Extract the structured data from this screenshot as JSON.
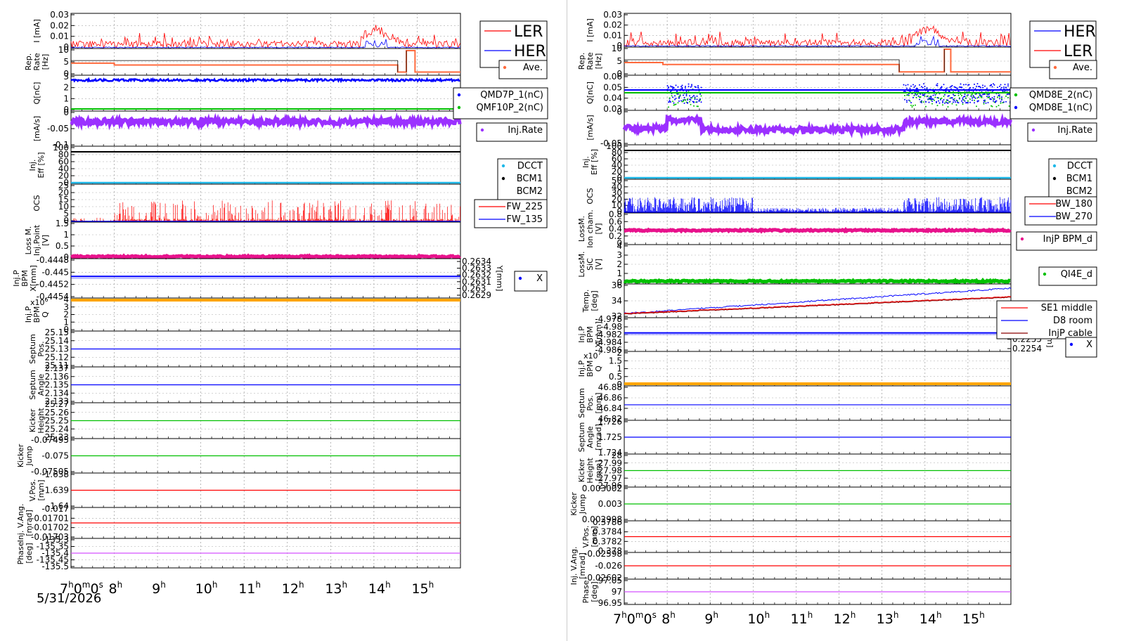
{
  "colors": {
    "red": "#ff0000",
    "blue": "#0000ff",
    "orange": "#ff6a3d",
    "green": "#00c000",
    "purple": "#9b30ff",
    "cyan": "#1fb8e8",
    "magenta": "#e8128c",
    "gold": "#ffa500",
    "lime": "#1ad01a",
    "darkred": "#8b0000",
    "violet": "#d452ff"
  },
  "left": {
    "date_label": "5/31/2026",
    "panels": [
      {
        "id": "current",
        "ylabel": [
          "I [mA]"
        ],
        "ticks": [
          "0.03",
          "0.02",
          "0.01",
          "0"
        ],
        "legend": [
          "LER",
          "HER"
        ],
        "legend_style": "big"
      },
      {
        "id": "reprate",
        "ylabel": [
          "Rep.",
          "Rate",
          "[Hz]"
        ],
        "ticks": [
          "10",
          "5",
          "0"
        ],
        "legend": [
          "Ave."
        ]
      },
      {
        "id": "charge",
        "ylabel": [
          "Q[nC]"
        ],
        "ticks": [
          "3",
          "2",
          "1",
          "0"
        ],
        "legend": [
          "QMD7P_1(nC)",
          "QMF10P_2(nC)"
        ]
      },
      {
        "id": "injrate",
        "ylabel": [
          "[mA/s]"
        ],
        "ticks": [
          "0",
          "-0.05",
          "-0.1"
        ],
        "legend": [
          "Inj.Rate"
        ]
      },
      {
        "id": "eff",
        "ylabel": [
          "Inj.",
          "Eff [%]"
        ],
        "ticks": [
          "100",
          "80",
          "60",
          "40",
          "20",
          "0"
        ],
        "legend": [
          "DCCT",
          "BCM1",
          "BCM2"
        ]
      },
      {
        "id": "ocs",
        "ylabel": [
          "OCS"
        ],
        "ticks": [
          "25",
          "20",
          "15",
          "10",
          "5",
          "0"
        ],
        "legend": [
          "FW_225",
          "FW_135"
        ]
      },
      {
        "id": "loss",
        "ylabel": [
          "Loss M.",
          "Inj.Point",
          "[V]"
        ],
        "ticks": [
          "1.5",
          "1",
          "0.5",
          "0"
        ],
        "legend": []
      },
      {
        "id": "bpmx",
        "ylabel": [
          "Inj.P",
          "BPM",
          "X[mm]"
        ],
        "ticks": [
          "-0.4448",
          "-0.445",
          "-0.4452",
          "-0.4454"
        ],
        "right_ticks": [
          "0.2634",
          "0.2633",
          "0.2632",
          "0.2631",
          "0.263",
          "0.2629"
        ],
        "right_label": "Y[mm]",
        "legend": [
          "X"
        ]
      },
      {
        "id": "bpmq",
        "ylabel": [
          "Inj.P",
          "BPM",
          "Q"
        ],
        "ticks": [
          "4",
          "3",
          "2",
          "1",
          "0"
        ],
        "exp": "x10^6",
        "legend": []
      },
      {
        "id": "septpos",
        "ylabel": [
          "Septum",
          "Pos."
        ],
        "ticks": [
          "25.15",
          "25.14",
          "25.13",
          "25.12",
          "25.11"
        ],
        "legend": []
      },
      {
        "id": "septang",
        "ylabel": [
          "Septum",
          "Angle"
        ],
        "ticks": [
          "2.137",
          "2.136",
          "2.135",
          "2.134",
          "2.133"
        ],
        "legend": []
      },
      {
        "id": "kickh",
        "ylabel": [
          "Kicker",
          "Height"
        ],
        "ticks": [
          "25.27",
          "25.26",
          "25.25",
          "25.24",
          "25.23"
        ],
        "legend": []
      },
      {
        "id": "kickj",
        "ylabel": [
          "Kicker",
          "Jump"
        ],
        "ticks": [
          "-0.07495",
          "-0.075",
          "-0.07505"
        ],
        "legend": []
      },
      {
        "id": "vpos",
        "ylabel": [
          "V.Pos.",
          "[mm]"
        ],
        "ticks": [
          "-1.638",
          "-1.639",
          "-1.64"
        ],
        "legend": []
      },
      {
        "id": "vang",
        "ylabel": [
          "Inj. V.Ang.",
          "[mrad]"
        ],
        "ticks": [
          "-0.017",
          "-0.01701",
          "-0.01702",
          "-0.01703"
        ],
        "legend": []
      },
      {
        "id": "phase",
        "ylabel": [
          "Phase",
          "[deg]"
        ],
        "ticks": [
          "-135.3",
          "-135.35",
          "-135.4",
          "-135.45",
          "-135.5"
        ],
        "legend": []
      }
    ]
  },
  "right": {
    "panels": [
      {
        "id": "current",
        "ylabel": [
          "I [mA]"
        ],
        "ticks": [
          "0.03",
          "0.02",
          "0.01",
          "0"
        ],
        "legend": [
          "HER",
          "LER"
        ],
        "legend_style": "big"
      },
      {
        "id": "reprate",
        "ylabel": [
          "Rep.",
          "Rate",
          "[Hz]"
        ],
        "ticks": [
          "10",
          "5",
          "0"
        ],
        "legend": [
          "Ave."
        ]
      },
      {
        "id": "charge",
        "ylabel": [
          "Q[nC]"
        ],
        "ticks": [
          "0.06",
          "0.05",
          "0.04",
          "0.03"
        ],
        "legend": [
          "QMD8E_2(nC)",
          "QMD8E_1(nC)"
        ]
      },
      {
        "id": "injrate",
        "ylabel": [
          "[mA/s]"
        ],
        "ticks": [
          "0",
          "-0.05"
        ],
        "legend": [
          "Inj.Rate"
        ]
      },
      {
        "id": "eff",
        "ylabel": [
          "Inj.",
          "Eff [%]"
        ],
        "ticks": [
          "100",
          "80",
          "60",
          "40",
          "20",
          "0"
        ],
        "legend": [
          "DCCT",
          "BCM1",
          "BCM2"
        ]
      },
      {
        "id": "ocs",
        "ylabel": [
          "OCS"
        ],
        "ticks": [
          "50",
          "40",
          "30",
          "20",
          "10",
          "0"
        ],
        "legend": [
          "BW_180",
          "BW_270"
        ]
      },
      {
        "id": "loss",
        "ylabel": [
          "LossM.",
          "Ion cham.",
          "[V]"
        ],
        "ticks": [
          "0.8",
          "0.6",
          "0.4",
          "0.2",
          "0"
        ],
        "legend": [
          "InjP BPM_d"
        ]
      },
      {
        "id": "loss2",
        "ylabel": [
          "LossM.",
          "SiC",
          "[V]"
        ],
        "ticks": [
          "4",
          "3",
          "2",
          "1",
          "0"
        ],
        "legend": [
          "QI4E_d"
        ]
      },
      {
        "id": "temp",
        "ylabel": [
          "Temp.",
          "[deg]"
        ],
        "ticks": [
          "36",
          "34",
          "32"
        ],
        "legend": [
          "SE1 middle",
          "D8 room",
          "InjP cable"
        ]
      },
      {
        "id": "bpmx",
        "ylabel": [
          "Inj.P",
          "BPM",
          "X[mm]"
        ],
        "ticks": [
          "-4.978",
          "-4.98",
          "-4.982",
          "-4.984",
          "-4.986"
        ],
        "right_ticks": [
          "0.2257",
          "0.2256",
          "0.2255",
          "0.2254"
        ],
        "right_label": "Y[mm]",
        "legend": [
          "X"
        ]
      },
      {
        "id": "bpmq",
        "ylabel": [
          "Inj.P",
          "BPM",
          "Q"
        ],
        "ticks": [
          "2",
          "1.5",
          "1",
          "0.5",
          "0"
        ],
        "exp": "x10^7",
        "legend": []
      },
      {
        "id": "septpos",
        "ylabel": [
          "Septum",
          "Pos.",
          "[mm]"
        ],
        "ticks": [
          "46.88",
          "46.86",
          "46.84",
          "46.82"
        ],
        "legend": []
      },
      {
        "id": "septang",
        "ylabel": [
          "Septum",
          "Angle",
          "[mrad]"
        ],
        "ticks": [
          "1.726",
          "1.725",
          "1.724"
        ],
        "legend": []
      },
      {
        "id": "kickh",
        "ylabel": [
          "Kicker",
          "Height",
          "[mm]"
        ],
        "ticks": [
          "28",
          "27.99",
          "27.98",
          "27.97",
          "27.96"
        ],
        "legend": []
      },
      {
        "id": "kickj",
        "ylabel": [
          "Kicker",
          "Jump"
        ],
        "ticks": [
          "0.003002",
          "0.003",
          "0.002998"
        ],
        "legend": []
      },
      {
        "id": "vpos",
        "ylabel": [
          "V.Pos.",
          "[mm]"
        ],
        "ticks": [
          "0.3786",
          "0.3784",
          "0.3782",
          "0.378"
        ],
        "legend": []
      },
      {
        "id": "vang",
        "ylabel": [
          "Inj. V.Ang.",
          "[mrad]"
        ],
        "ticks": [
          "-0.02598",
          "-0.026",
          "-0.02602"
        ],
        "legend": []
      },
      {
        "id": "phase",
        "ylabel": [
          "Phase",
          "[deg]"
        ],
        "ticks": [
          "97.05",
          "97",
          "96.95"
        ],
        "legend": []
      }
    ]
  },
  "x_axis": {
    "ticks": [
      {
        "h": "7",
        "label": "7",
        "sup": "h",
        "extra": "0m0s"
      },
      {
        "h": "8",
        "label": "8",
        "sup": "h"
      },
      {
        "h": "9",
        "label": "9",
        "sup": "h"
      },
      {
        "h": "10",
        "label": "10",
        "sup": "h"
      },
      {
        "h": "11",
        "label": "11",
        "sup": "h"
      },
      {
        "h": "12",
        "label": "12",
        "sup": "h"
      },
      {
        "h": "13",
        "label": "13",
        "sup": "h"
      },
      {
        "h": "14",
        "label": "14",
        "sup": "h"
      },
      {
        "h": "15",
        "label": "15",
        "sup": "h"
      }
    ],
    "range_hours": [
      7,
      16
    ]
  },
  "chart_data": [
    {
      "type": "line",
      "title": "",
      "xlabel": "",
      "ylabel": "I [mA]",
      "x_range": [
        "7h",
        "16h"
      ],
      "ylim": [
        0,
        0.03
      ],
      "series": [
        {
          "name": "LER"
        },
        {
          "name": "HER"
        }
      ]
    },
    {
      "type": "line",
      "title": "",
      "xlabel": "",
      "ylabel": "I [mA]",
      "x_range": [
        "7h",
        "16h"
      ],
      "ylim": [
        0,
        0.03
      ],
      "series": [
        {
          "name": "HER"
        },
        {
          "name": "LER"
        }
      ]
    }
  ]
}
